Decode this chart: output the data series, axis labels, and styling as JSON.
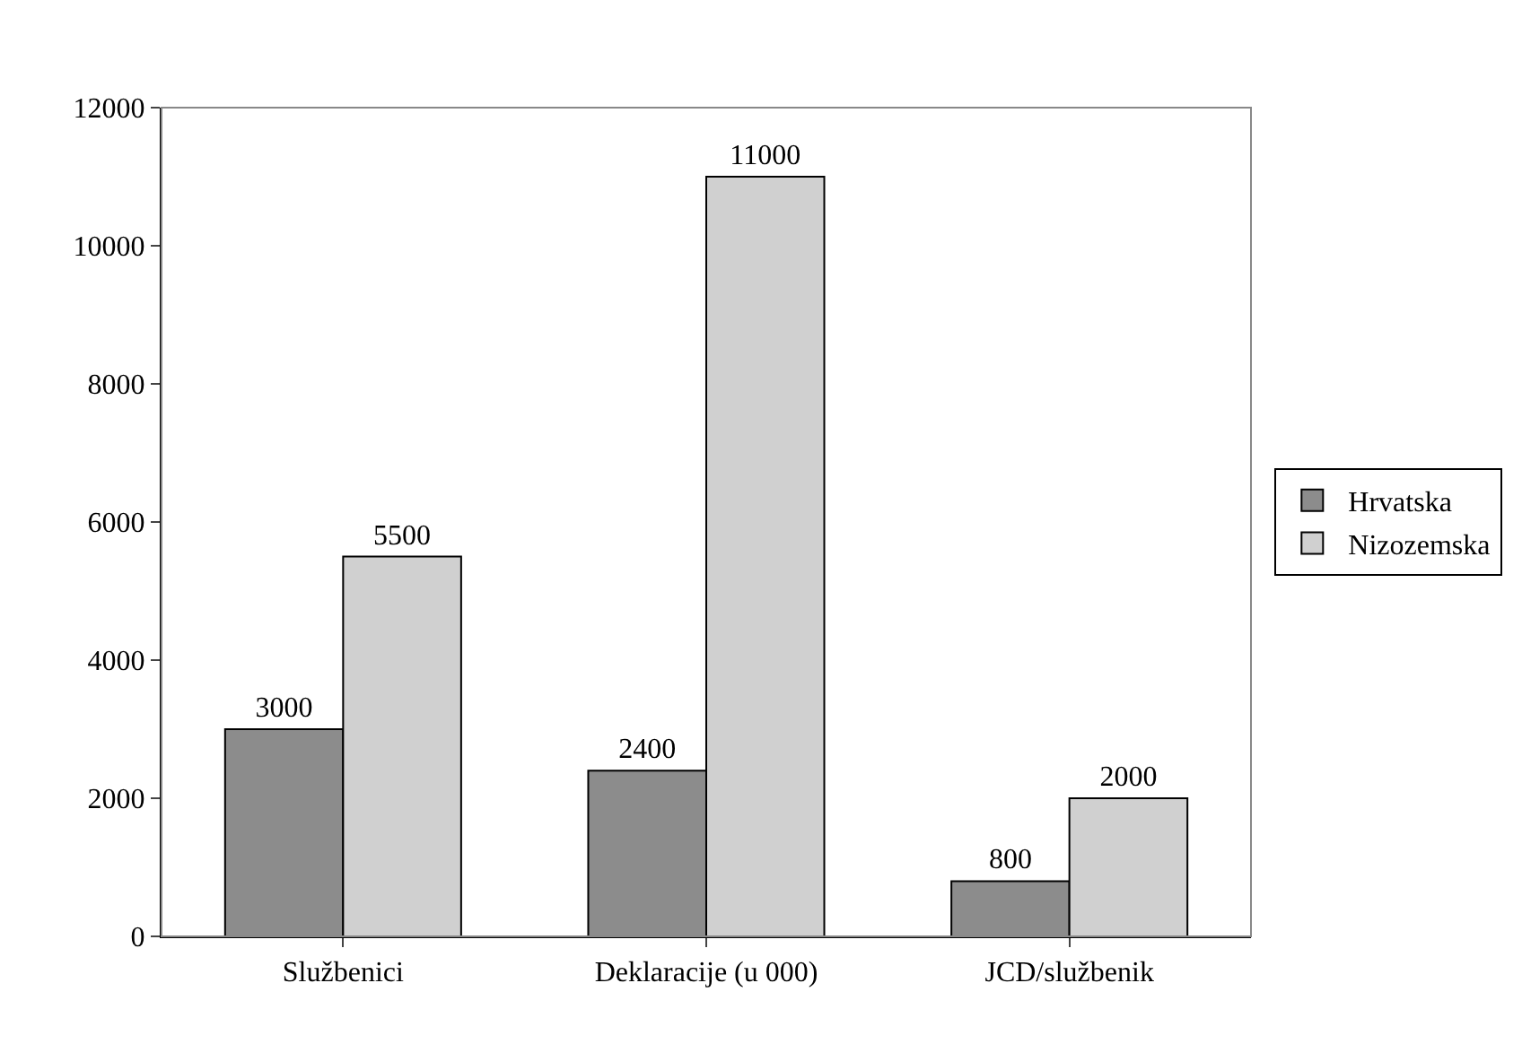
{
  "chart_data": {
    "type": "bar",
    "categories": [
      "Službenici",
      "Deklaracije (u 000)",
      "JCD/službenik"
    ],
    "series": [
      {
        "name": "Hrvatska",
        "color": "#8c8c8c",
        "values": [
          3000,
          2400,
          800
        ]
      },
      {
        "name": "Nizozemska",
        "color": "#d0d0d0",
        "values": [
          5500,
          11000,
          2000
        ]
      }
    ],
    "ylim": [
      0,
      12000
    ],
    "yticks": [
      0,
      2000,
      4000,
      6000,
      8000,
      10000,
      12000
    ],
    "data_labels": true,
    "legend": "right",
    "grid": false
  }
}
